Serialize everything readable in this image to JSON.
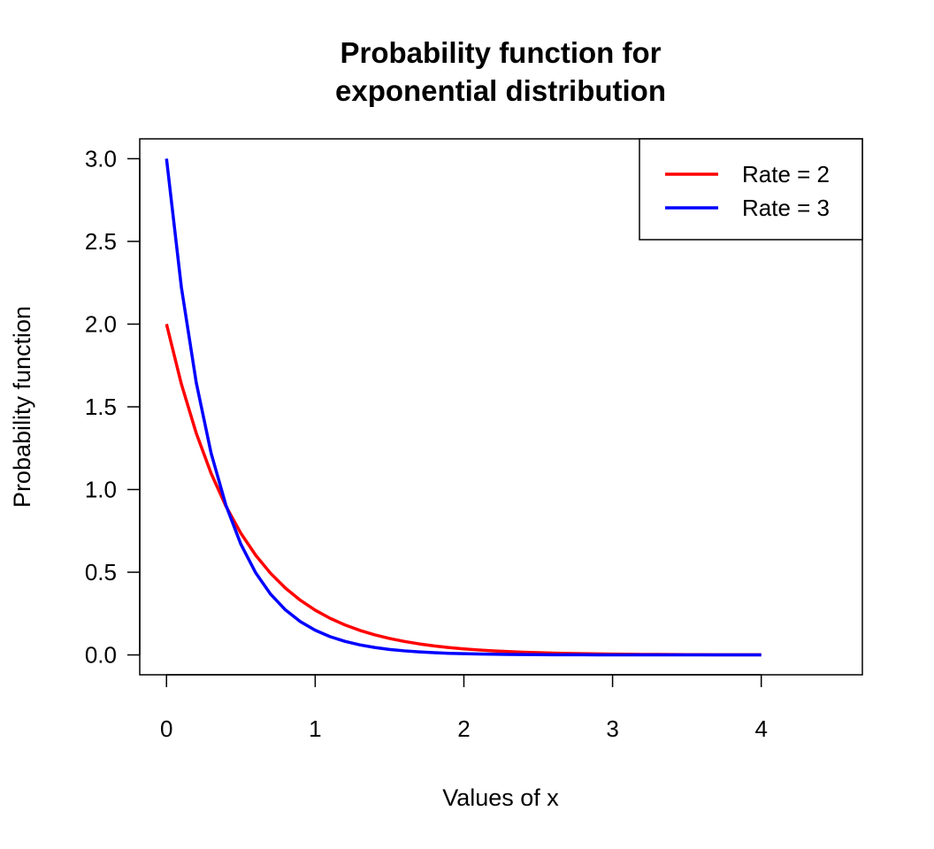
{
  "chart_data": {
    "type": "line",
    "title": [
      "Probability function for",
      "exponential distribution"
    ],
    "xlabel": "Values of x",
    "ylabel": "Probability function",
    "xlim": [
      0,
      4.5
    ],
    "ylim": [
      0,
      3
    ],
    "xticks": [
      0,
      1,
      2,
      3,
      4
    ],
    "xtick_labels": [
      "0",
      "1",
      "2",
      "3",
      "4"
    ],
    "yticks": [
      0,
      0.5,
      1,
      1.5,
      2,
      2.5,
      3
    ],
    "ytick_labels": [
      "0.0",
      "0.5",
      "1.0",
      "1.5",
      "2.0",
      "2.5",
      "3.0"
    ],
    "grid": false,
    "legend_position": "top-right",
    "x": [
      0,
      0.1,
      0.2,
      0.3,
      0.4,
      0.5,
      0.6,
      0.7,
      0.8,
      0.9,
      1.0,
      1.1,
      1.2,
      1.3,
      1.4,
      1.5,
      1.6,
      1.7,
      1.8,
      1.9,
      2.0,
      2.1,
      2.2,
      2.3,
      2.4,
      2.5,
      2.6,
      2.7,
      2.8,
      2.9,
      3.0,
      3.1,
      3.2,
      3.3,
      3.4,
      3.5,
      3.6,
      3.7,
      3.8,
      3.9,
      4.0
    ],
    "series": [
      {
        "name": "Rate = 2",
        "color": "#ff0000",
        "values": [
          2,
          1.6375,
          1.3406,
          1.0976,
          0.8987,
          0.7358,
          0.6024,
          0.4932,
          0.4038,
          0.3306,
          0.2707,
          0.2216,
          0.1814,
          0.1485,
          0.1216,
          0.0996,
          0.0815,
          0.0667,
          0.0546,
          0.0447,
          0.0366,
          0.03,
          0.0246,
          0.0201,
          0.0165,
          0.0135,
          0.011,
          0.009,
          0.0074,
          0.0061,
          0.005,
          0.0041,
          0.0033,
          0.0027,
          0.0022,
          0.0018,
          0.0015,
          0.0012,
          0.001,
          0.0008,
          0.0007
        ]
      },
      {
        "name": "Rate = 3",
        "color": "#0000ff",
        "values": [
          3,
          2.2225,
          1.6464,
          1.2197,
          0.9036,
          0.6694,
          0.4959,
          0.3674,
          0.2722,
          0.2016,
          0.1494,
          0.1106,
          0.082,
          0.0607,
          0.045,
          0.0333,
          0.0247,
          0.0183,
          0.0136,
          0.01,
          0.0074,
          0.0055,
          0.0041,
          0.003,
          0.0022,
          0.0017,
          0.0012,
          0.0009,
          0.0007,
          0.0005,
          0.0004,
          0.0003,
          0.0002,
          0.0001,
          0.0001,
          0.0001,
          0.0001,
          0.0,
          0.0,
          0.0,
          0.0
        ]
      }
    ]
  }
}
